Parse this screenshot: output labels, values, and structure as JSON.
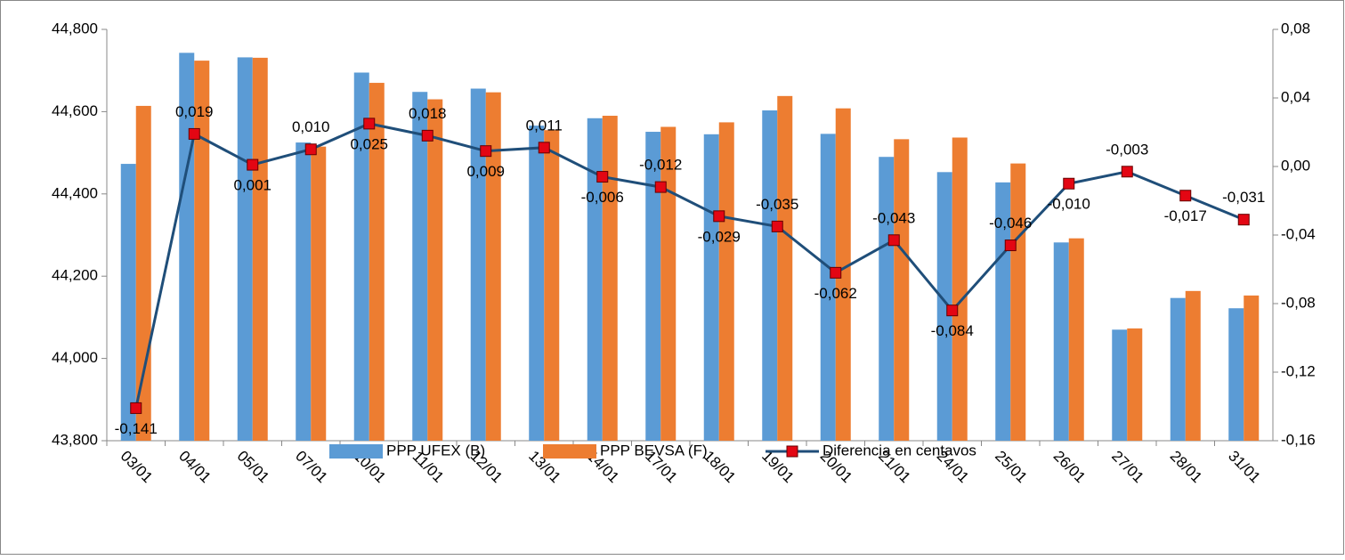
{
  "chart_data": {
    "type": "bar_line",
    "categories": [
      "03/01",
      "04/01",
      "05/01",
      "07/01",
      "10/01",
      "11/01",
      "12/01",
      "13/01",
      "14/01",
      "17/01",
      "18/01",
      "19/01",
      "20/01",
      "21/01",
      "24/01",
      "25/01",
      "26/01",
      "27/01",
      "28/01",
      "31/01"
    ],
    "series": [
      {
        "name": "PPP UFEX (B)",
        "color": "#5b9bd5",
        "kind": "bar",
        "values": [
          44.473,
          44.743,
          44.732,
          44.525,
          44.695,
          44.648,
          44.656,
          44.566,
          44.584,
          44.551,
          44.545,
          44.603,
          44.546,
          44.49,
          44.453,
          44.428,
          44.282,
          44.07,
          44.147,
          44.122
        ]
      },
      {
        "name": "PPP BEVSA (F)",
        "color": "#ed7d31",
        "kind": "bar",
        "values": [
          44.614,
          44.724,
          44.731,
          44.515,
          44.67,
          44.63,
          44.647,
          44.555,
          44.59,
          44.563,
          44.574,
          44.638,
          44.608,
          44.533,
          44.537,
          44.474,
          44.292,
          44.073,
          44.164,
          44.153
        ]
      },
      {
        "name": "Diferencia en centavos",
        "color": "#1f4e79",
        "marker_color": "#e30613",
        "kind": "line",
        "axis": "y2",
        "values": [
          -0.141,
          0.019,
          0.001,
          0.01,
          0.025,
          0.018,
          0.009,
          0.011,
          -0.006,
          -0.012,
          -0.029,
          -0.035,
          -0.062,
          -0.043,
          -0.084,
          -0.046,
          -0.01,
          -0.003,
          -0.017,
          -0.031
        ],
        "value_labels": [
          "-0,141",
          "0,019",
          "0,001",
          "0,010",
          "0,025",
          "0,018",
          "0,009",
          "0,011",
          "-0,006",
          "-0,012",
          "-0,029",
          "-0,035",
          "-0,062",
          "-0,043",
          "-0,084",
          "-0,046",
          "-0,010",
          "-0,003",
          "-0,017",
          "-0,031"
        ]
      }
    ],
    "ylim": [
      43.8,
      44.8
    ],
    "yticks": [
      {
        "value": 43.8,
        "label": "43,800"
      },
      {
        "value": 44.0,
        "label": "44,000"
      },
      {
        "value": 44.2,
        "label": "44,200"
      },
      {
        "value": 44.4,
        "label": "44,400"
      },
      {
        "value": 44.6,
        "label": "44,600"
      },
      {
        "value": 44.8,
        "label": "44,800"
      }
    ],
    "y2lim": [
      -0.16,
      0.08
    ],
    "y2ticks": [
      {
        "value": -0.16,
        "label": "-0,16"
      },
      {
        "value": -0.12,
        "label": "-0,12"
      },
      {
        "value": -0.08,
        "label": "-0,08"
      },
      {
        "value": -0.04,
        "label": "-0,04"
      },
      {
        "value": 0.0,
        "label": "0,00"
      },
      {
        "value": 0.04,
        "label": "0,04"
      },
      {
        "value": 0.08,
        "label": "0,08"
      }
    ],
    "legend": "bottom"
  }
}
